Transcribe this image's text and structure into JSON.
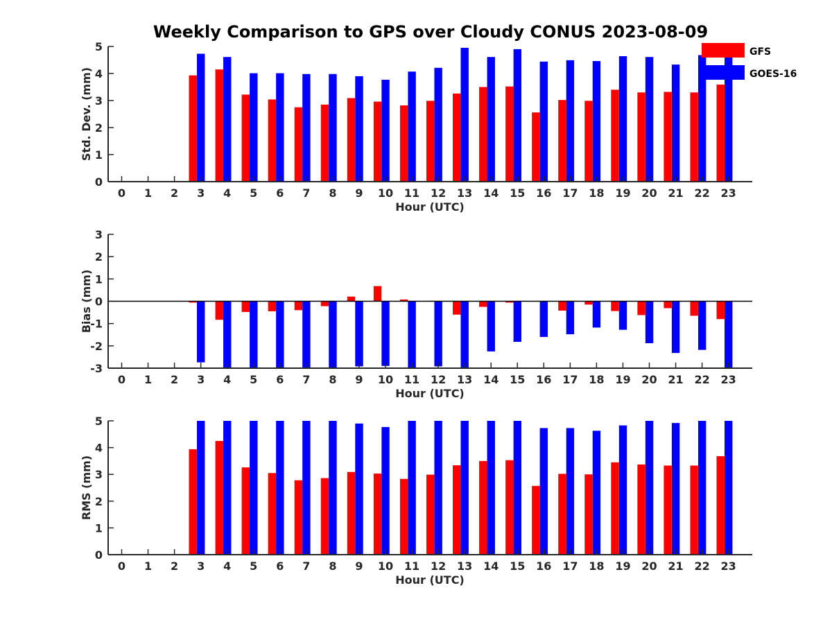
{
  "title": "Weekly Comparison to GPS over Cloudy CONUS 2023-08-09",
  "colors": {
    "GFS": "#ff0000",
    "GOES-16": "#0000ff",
    "axis": "#262626"
  },
  "legend": {
    "placement": "top-right",
    "entries": [
      "GFS",
      "GOES-16"
    ]
  },
  "chart_data": [
    {
      "type": "bar",
      "xlabel": "Hour (UTC)",
      "ylabel": "Std. Dev. (mm)",
      "ylim": [
        0,
        5
      ],
      "yticks": [
        0,
        1,
        2,
        3,
        4,
        5
      ],
      "zero_line": false,
      "categories": [
        "0",
        "1",
        "2",
        "3",
        "4",
        "5",
        "6",
        "7",
        "8",
        "9",
        "10",
        "11",
        "12",
        "13",
        "14",
        "15",
        "16",
        "17",
        "18",
        "19",
        "20",
        "21",
        "22",
        "23"
      ],
      "series": [
        {
          "name": "GFS",
          "values": [
            null,
            null,
            null,
            3.93,
            4.15,
            3.22,
            3.04,
            2.75,
            2.85,
            3.09,
            2.96,
            2.82,
            2.99,
            3.26,
            3.5,
            3.52,
            2.56,
            3.02,
            2.99,
            3.4,
            3.3,
            3.32,
            3.3,
            3.59
          ]
        },
        {
          "name": "GOES-16",
          "values": [
            null,
            null,
            null,
            4.73,
            4.61,
            4.01,
            4.01,
            3.98,
            3.98,
            3.9,
            3.77,
            4.07,
            4.21,
            4.95,
            4.61,
            4.9,
            4.44,
            4.49,
            4.46,
            4.64,
            4.61,
            4.33,
            4.68,
            4.6
          ]
        }
      ]
    },
    {
      "type": "bar",
      "xlabel": "Hour (UTC)",
      "ylabel": "Bias (mm)",
      "ylim": [
        -3,
        3
      ],
      "yticks": [
        -3,
        -2,
        -1,
        0,
        1,
        2,
        3
      ],
      "zero_line": true,
      "categories": [
        "0",
        "1",
        "2",
        "3",
        "4",
        "5",
        "6",
        "7",
        "8",
        "9",
        "10",
        "11",
        "12",
        "13",
        "14",
        "15",
        "16",
        "17",
        "18",
        "19",
        "20",
        "21",
        "22",
        "23"
      ],
      "series": [
        {
          "name": "GFS",
          "values": [
            null,
            null,
            null,
            -0.06,
            -0.83,
            -0.48,
            -0.45,
            -0.4,
            -0.22,
            0.21,
            0.68,
            0.08,
            0.02,
            -0.6,
            -0.25,
            -0.06,
            0.0,
            -0.42,
            -0.15,
            -0.44,
            -0.62,
            -0.31,
            -0.65,
            -0.8
          ]
        },
        {
          "name": "GOES-16",
          "values": [
            null,
            null,
            null,
            -2.74,
            -3.0,
            -3.0,
            -3.0,
            -3.0,
            -3.0,
            -2.92,
            -2.9,
            -3.0,
            -2.92,
            -3.0,
            -2.25,
            -1.82,
            -1.6,
            -1.48,
            -1.18,
            -1.28,
            -1.88,
            -2.32,
            -2.18,
            -3.0
          ]
        }
      ]
    },
    {
      "type": "bar",
      "xlabel": "Hour (UTC)",
      "ylabel": "RMS (mm)",
      "ylim": [
        0,
        5
      ],
      "yticks": [
        0,
        1,
        2,
        3,
        4,
        5
      ],
      "zero_line": false,
      "categories": [
        "0",
        "1",
        "2",
        "3",
        "4",
        "5",
        "6",
        "7",
        "8",
        "9",
        "10",
        "11",
        "12",
        "13",
        "14",
        "15",
        "16",
        "17",
        "18",
        "19",
        "20",
        "21",
        "22",
        "23"
      ],
      "series": [
        {
          "name": "GFS",
          "values": [
            null,
            null,
            null,
            3.94,
            4.25,
            3.26,
            3.05,
            2.78,
            2.86,
            3.09,
            3.03,
            2.83,
            2.99,
            3.34,
            3.5,
            3.53,
            2.57,
            3.02,
            3.0,
            3.45,
            3.37,
            3.33,
            3.33,
            3.68
          ]
        },
        {
          "name": "GOES-16",
          "values": [
            null,
            null,
            null,
            5.0,
            5.0,
            5.0,
            5.0,
            5.0,
            5.0,
            4.9,
            4.77,
            5.0,
            5.0,
            5.0,
            5.0,
            5.0,
            4.73,
            4.73,
            4.63,
            4.83,
            5.0,
            4.92,
            5.0,
            5.0
          ]
        }
      ]
    }
  ]
}
